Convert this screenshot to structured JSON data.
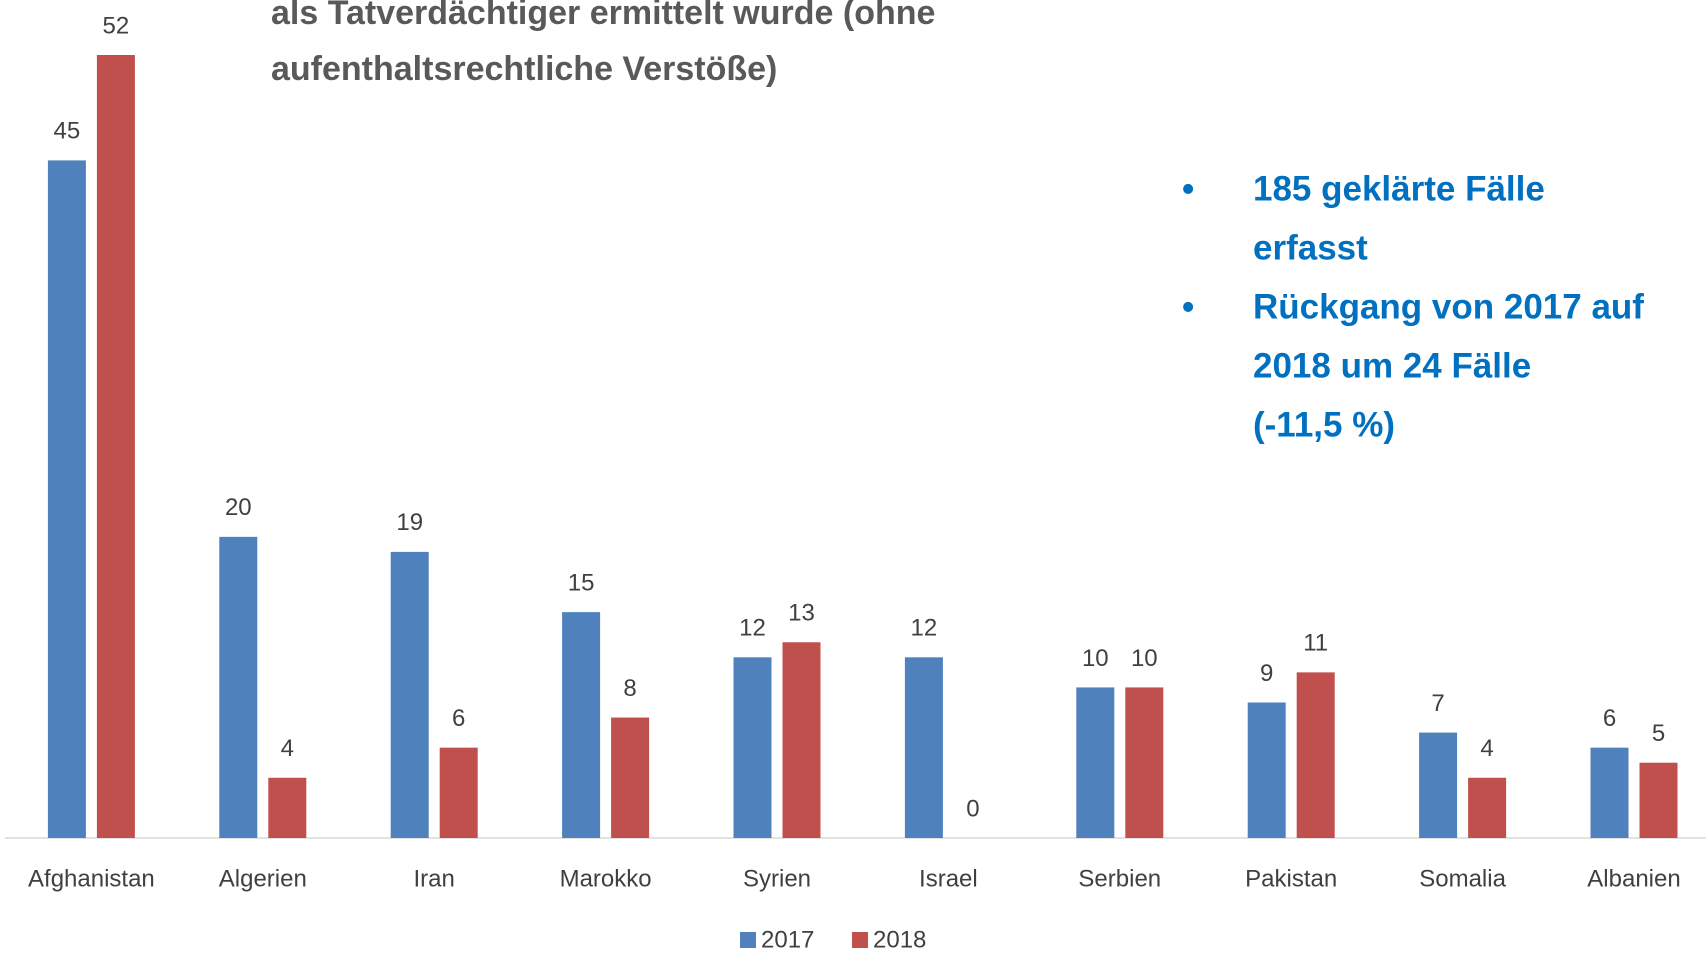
{
  "chart_data": {
    "type": "bar",
    "title": [
      "als Tatverdächtiger ermittelt wurde (ohne",
      "aufenthaltsrechtliche Verstöße)"
    ],
    "annotations": [
      [
        "185 geklärte Fälle",
        "erfasst"
      ],
      [
        "Rückgang von 2017 auf",
        "2018 um 24 Fälle",
        "(-11,5 %)"
      ]
    ],
    "categories": [
      "Afghanistan",
      "Algerien",
      "Iran",
      "Marokko",
      "Syrien",
      "Israel",
      "Serbien",
      "Pakistan",
      "Somalia",
      "Albanien"
    ],
    "series": [
      {
        "name": "2017",
        "color": "#4f81bd",
        "values": [
          45,
          20,
          19,
          15,
          12,
          12,
          10,
          9,
          7,
          6
        ]
      },
      {
        "name": "2018",
        "color": "#c0504d",
        "values": [
          52,
          4,
          6,
          8,
          13,
          0,
          10,
          11,
          4,
          5
        ]
      }
    ],
    "ylim": [
      0,
      52
    ],
    "legend": "bottom"
  }
}
